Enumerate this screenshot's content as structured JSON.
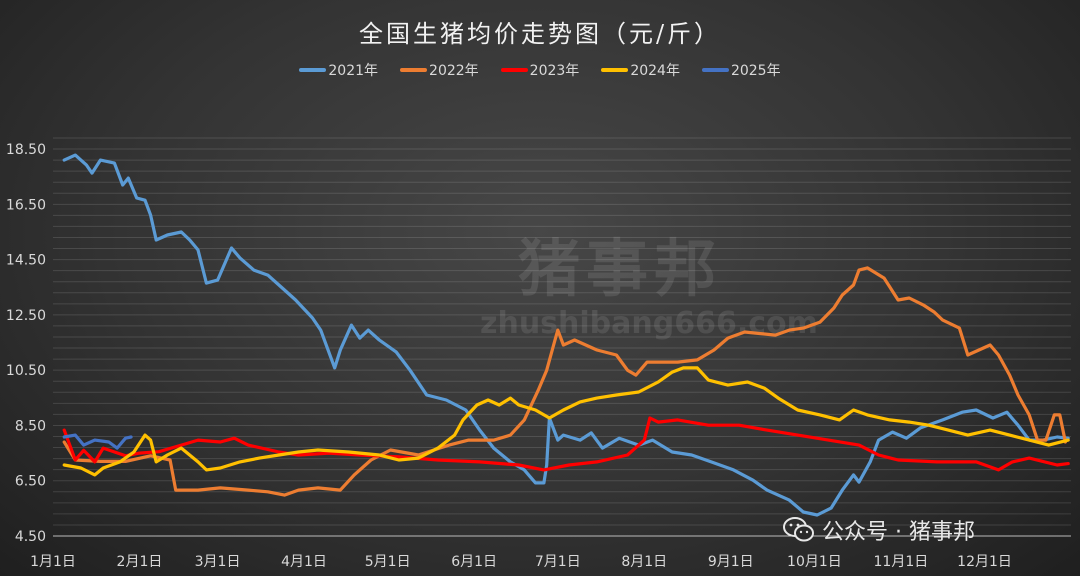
{
  "chart_data": {
    "type": "line",
    "title": "全国生猪均价走势图（元/斤）",
    "xlabel": "",
    "ylabel": "",
    "ylim": [
      4.5,
      19.26
    ],
    "y_ticks": [
      "4.50",
      "6.50",
      "8.50",
      "10.50",
      "12.50",
      "14.50",
      "16.50",
      "18.50"
    ],
    "x_ticks": [
      "1月1日",
      "2月1日",
      "3月1日",
      "4月1日",
      "5月1日",
      "6月1日",
      "7月1日",
      "8月1日",
      "9月1日",
      "10月1日",
      "11月1日",
      "12月1日"
    ],
    "grid": true,
    "legend_placement": "top",
    "series": [
      {
        "name": "2021年",
        "color": "#5b9bd5",
        "points": [
          [
            "01-05",
            18.1
          ],
          [
            "01-09",
            18.28
          ],
          [
            "01-13",
            17.92
          ],
          [
            "01-15",
            17.63
          ],
          [
            "01-18",
            18.1
          ],
          [
            "01-23",
            17.99
          ],
          [
            "01-26",
            17.2
          ],
          [
            "01-28",
            17.45
          ],
          [
            "01-31",
            16.73
          ],
          [
            "02-03",
            16.65
          ],
          [
            "02-05",
            16.11
          ],
          [
            "02-07",
            15.21
          ],
          [
            "02-11",
            15.39
          ],
          [
            "02-16",
            15.5
          ],
          [
            "02-19",
            15.21
          ],
          [
            "02-22",
            14.85
          ],
          [
            "02-25",
            13.65
          ],
          [
            "03-01",
            13.76
          ],
          [
            "03-06",
            14.92
          ],
          [
            "03-09",
            14.56
          ],
          [
            "03-14",
            14.12
          ],
          [
            "03-19",
            13.94
          ],
          [
            "03-25",
            13.4
          ],
          [
            "03-29",
            13.04
          ],
          [
            "04-04",
            12.39
          ],
          [
            "04-07",
            11.95
          ],
          [
            "04-12",
            10.58
          ],
          [
            "04-14",
            11.23
          ],
          [
            "04-18",
            12.13
          ],
          [
            "04-21",
            11.66
          ],
          [
            "04-24",
            11.95
          ],
          [
            "04-28",
            11.59
          ],
          [
            "05-04",
            11.16
          ],
          [
            "05-09",
            10.5
          ],
          [
            "05-15",
            9.6
          ],
          [
            "05-22",
            9.42
          ],
          [
            "05-29",
            9.06
          ],
          [
            "06-03",
            8.33
          ],
          [
            "06-08",
            7.68
          ],
          [
            "06-14",
            7.18
          ],
          [
            "06-19",
            6.89
          ],
          [
            "06-23",
            6.42
          ],
          [
            "06-26",
            6.42
          ],
          [
            "06-27",
            7.07
          ],
          [
            "06-28",
            8.77
          ],
          [
            "07-01",
            7.97
          ],
          [
            "07-03",
            8.15
          ],
          [
            "07-09",
            7.97
          ],
          [
            "07-13",
            8.23
          ],
          [
            "07-17",
            7.68
          ],
          [
            "07-23",
            8.04
          ],
          [
            "07-30",
            7.79
          ],
          [
            "08-04",
            7.97
          ],
          [
            "08-11",
            7.54
          ],
          [
            "08-18",
            7.43
          ],
          [
            "08-25",
            7.18
          ],
          [
            "09-02",
            6.89
          ],
          [
            "09-09",
            6.52
          ],
          [
            "09-14",
            6.16
          ],
          [
            "09-22",
            5.8
          ],
          [
            "09-27",
            5.37
          ],
          [
            "10-02",
            5.26
          ],
          [
            "10-07",
            5.51
          ],
          [
            "10-11",
            6.16
          ],
          [
            "10-15",
            6.71
          ],
          [
            "10-17",
            6.45
          ],
          [
            "10-21",
            7.18
          ],
          [
            "10-24",
            7.97
          ],
          [
            "10-29",
            8.26
          ],
          [
            "11-03",
            8.04
          ],
          [
            "11-08",
            8.41
          ],
          [
            "11-16",
            8.7
          ],
          [
            "11-23",
            8.98
          ],
          [
            "11-28",
            9.06
          ],
          [
            "12-04",
            8.77
          ],
          [
            "12-09",
            8.98
          ],
          [
            "12-13",
            8.51
          ],
          [
            "12-17",
            7.97
          ],
          [
            "12-22",
            7.97
          ],
          [
            "12-27",
            8.08
          ],
          [
            "12-31",
            8.04
          ]
        ]
      },
      {
        "name": "2022年",
        "color": "#ed7d31",
        "points": [
          [
            "01-05",
            7.9
          ],
          [
            "01-09",
            7.25
          ],
          [
            "01-18",
            7.2
          ],
          [
            "01-27",
            7.2
          ],
          [
            "02-05",
            7.4
          ],
          [
            "02-12",
            7.25
          ],
          [
            "02-14",
            6.16
          ],
          [
            "02-22",
            6.16
          ],
          [
            "03-02",
            6.24
          ],
          [
            "03-12",
            6.16
          ],
          [
            "03-19",
            6.1
          ],
          [
            "03-25",
            5.98
          ],
          [
            "03-30",
            6.16
          ],
          [
            "04-06",
            6.24
          ],
          [
            "04-14",
            6.16
          ],
          [
            "04-19",
            6.71
          ],
          [
            "04-25",
            7.25
          ],
          [
            "05-02",
            7.61
          ],
          [
            "05-12",
            7.43
          ],
          [
            "05-23",
            7.79
          ],
          [
            "05-30",
            7.97
          ],
          [
            "06-08",
            7.97
          ],
          [
            "06-14",
            8.15
          ],
          [
            "06-19",
            8.7
          ],
          [
            "06-24",
            9.78
          ],
          [
            "06-27",
            10.5
          ],
          [
            "06-30",
            11.59
          ],
          [
            "07-01",
            11.95
          ],
          [
            "07-03",
            11.41
          ],
          [
            "07-07",
            11.59
          ],
          [
            "07-15",
            11.23
          ],
          [
            "07-22",
            11.05
          ],
          [
            "07-26",
            10.5
          ],
          [
            "07-29",
            10.32
          ],
          [
            "08-02",
            10.79
          ],
          [
            "08-13",
            10.79
          ],
          [
            "08-20",
            10.87
          ],
          [
            "08-26",
            11.23
          ],
          [
            "08-31",
            11.66
          ],
          [
            "09-06",
            11.88
          ],
          [
            "09-17",
            11.77
          ],
          [
            "09-22",
            11.95
          ],
          [
            "09-27",
            12.02
          ],
          [
            "10-03",
            12.24
          ],
          [
            "10-08",
            12.75
          ],
          [
            "10-11",
            13.22
          ],
          [
            "10-15",
            13.58
          ],
          [
            "10-17",
            14.12
          ],
          [
            "10-20",
            14.2
          ],
          [
            "10-26",
            13.83
          ],
          [
            "10-31",
            13.04
          ],
          [
            "11-04",
            13.11
          ],
          [
            "11-09",
            12.86
          ],
          [
            "11-13",
            12.6
          ],
          [
            "11-16",
            12.31
          ],
          [
            "11-22",
            12.02
          ],
          [
            "11-25",
            11.05
          ],
          [
            "12-03",
            11.41
          ],
          [
            "12-06",
            11.05
          ],
          [
            "12-10",
            10.32
          ],
          [
            "12-13",
            9.6
          ],
          [
            "12-17",
            8.88
          ],
          [
            "12-20",
            7.97
          ],
          [
            "12-23",
            7.97
          ],
          [
            "12-26",
            8.88
          ],
          [
            "12-28",
            8.88
          ],
          [
            "12-30",
            7.9
          ]
        ]
      },
      {
        "name": "2023年",
        "color": "#ff0000",
        "points": [
          [
            "01-05",
            8.33
          ],
          [
            "01-09",
            7.25
          ],
          [
            "01-12",
            7.6
          ],
          [
            "01-16",
            7.18
          ],
          [
            "01-19",
            7.68
          ],
          [
            "01-27",
            7.4
          ],
          [
            "02-01",
            7.5
          ],
          [
            "02-08",
            7.55
          ],
          [
            "02-16",
            7.79
          ],
          [
            "02-22",
            7.97
          ],
          [
            "03-02",
            7.9
          ],
          [
            "03-07",
            8.04
          ],
          [
            "03-12",
            7.79
          ],
          [
            "03-23",
            7.54
          ],
          [
            "03-30",
            7.43
          ],
          [
            "04-10",
            7.5
          ],
          [
            "04-21",
            7.43
          ],
          [
            "05-05",
            7.36
          ],
          [
            "05-19",
            7.25
          ],
          [
            "06-03",
            7.18
          ],
          [
            "06-17",
            7.07
          ],
          [
            "06-26",
            6.89
          ],
          [
            "07-05",
            7.07
          ],
          [
            "07-15",
            7.18
          ],
          [
            "07-26",
            7.43
          ],
          [
            "08-01",
            7.97
          ],
          [
            "08-03",
            8.77
          ],
          [
            "08-06",
            8.62
          ],
          [
            "08-13",
            8.7
          ],
          [
            "08-24",
            8.51
          ],
          [
            "09-04",
            8.51
          ],
          [
            "09-14",
            8.33
          ],
          [
            "09-25",
            8.15
          ],
          [
            "10-06",
            7.97
          ],
          [
            "10-17",
            7.79
          ],
          [
            "10-24",
            7.43
          ],
          [
            "10-31",
            7.25
          ],
          [
            "11-14",
            7.18
          ],
          [
            "11-28",
            7.18
          ],
          [
            "12-06",
            6.89
          ],
          [
            "12-11",
            7.18
          ],
          [
            "12-17",
            7.32
          ],
          [
            "12-27",
            7.07
          ],
          [
            "12-31",
            7.12
          ]
        ]
      },
      {
        "name": "2024年",
        "color": "#ffc000",
        "points": [
          [
            "01-05",
            7.07
          ],
          [
            "01-11",
            6.96
          ],
          [
            "01-16",
            6.71
          ],
          [
            "01-19",
            6.96
          ],
          [
            "01-25",
            7.18
          ],
          [
            "01-30",
            7.54
          ],
          [
            "02-03",
            8.15
          ],
          [
            "02-05",
            7.97
          ],
          [
            "02-07",
            7.18
          ],
          [
            "02-11",
            7.43
          ],
          [
            "02-16",
            7.68
          ],
          [
            "02-22",
            7.18
          ],
          [
            "02-25",
            6.89
          ],
          [
            "03-02",
            6.96
          ],
          [
            "03-09",
            7.18
          ],
          [
            "03-16",
            7.32
          ],
          [
            "03-23",
            7.43
          ],
          [
            "03-30",
            7.54
          ],
          [
            "04-06",
            7.61
          ],
          [
            "04-17",
            7.54
          ],
          [
            "04-28",
            7.43
          ],
          [
            "05-05",
            7.25
          ],
          [
            "05-12",
            7.32
          ],
          [
            "05-19",
            7.68
          ],
          [
            "05-25",
            8.15
          ],
          [
            "05-28",
            8.7
          ],
          [
            "06-02",
            9.24
          ],
          [
            "06-06",
            9.42
          ],
          [
            "06-10",
            9.24
          ],
          [
            "06-14",
            9.49
          ],
          [
            "06-17",
            9.24
          ],
          [
            "06-23",
            9.06
          ],
          [
            "06-28",
            8.77
          ],
          [
            "07-03",
            9.06
          ],
          [
            "07-09",
            9.35
          ],
          [
            "07-15",
            9.49
          ],
          [
            "07-22",
            9.6
          ],
          [
            "07-30",
            9.71
          ],
          [
            "08-06",
            10.07
          ],
          [
            "08-11",
            10.43
          ],
          [
            "08-15",
            10.58
          ],
          [
            "08-20",
            10.58
          ],
          [
            "08-24",
            10.14
          ],
          [
            "08-31",
            9.96
          ],
          [
            "09-07",
            10.07
          ],
          [
            "09-13",
            9.85
          ],
          [
            "09-18",
            9.49
          ],
          [
            "09-25",
            9.06
          ],
          [
            "10-03",
            8.88
          ],
          [
            "10-10",
            8.7
          ],
          [
            "10-15",
            9.06
          ],
          [
            "10-20",
            8.88
          ],
          [
            "10-28",
            8.7
          ],
          [
            "11-04",
            8.62
          ],
          [
            "11-11",
            8.51
          ],
          [
            "11-18",
            8.33
          ],
          [
            "11-25",
            8.15
          ],
          [
            "12-03",
            8.33
          ],
          [
            "12-10",
            8.15
          ],
          [
            "12-17",
            7.97
          ],
          [
            "12-24",
            7.79
          ],
          [
            "12-31",
            7.97
          ]
        ]
      },
      {
        "name": "2025年",
        "color": "#4472c4",
        "points": [
          [
            "01-05",
            8.08
          ],
          [
            "01-09",
            8.15
          ],
          [
            "01-12",
            7.79
          ],
          [
            "01-16",
            7.97
          ],
          [
            "01-21",
            7.9
          ],
          [
            "01-24",
            7.68
          ],
          [
            "01-27",
            8.04
          ],
          [
            "01-29",
            8.08
          ]
        ]
      }
    ]
  },
  "watermark": {
    "logo_text": "猪事邦",
    "site": "zhushibang666.com"
  },
  "brand": {
    "label": "公众号 · 猪事邦",
    "icon": "wechat-icon"
  }
}
